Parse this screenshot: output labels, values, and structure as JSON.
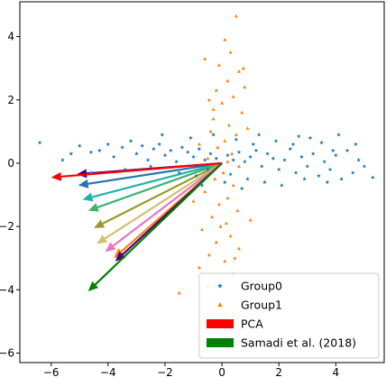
{
  "chart_data": {
    "type": "scatter",
    "title": "",
    "xlabel": "",
    "ylabel": "",
    "xlim": [
      -7.1,
      5.7
    ],
    "ylim": [
      -6.3,
      5.1
    ],
    "x_ticks": [
      -6,
      -4,
      -2,
      0,
      2,
      4
    ],
    "y_ticks": [
      -6,
      -4,
      -2,
      0,
      2,
      4
    ],
    "x_tick_labels": [
      "−6",
      "−4",
      "−2",
      "0",
      "2",
      "4"
    ],
    "y_tick_labels": [
      "−6",
      "−4",
      "−2",
      "0",
      "2",
      "4"
    ],
    "grid": false,
    "legend_position": "lower-right",
    "series": [
      {
        "name": "Group0",
        "kind": "scatter",
        "marker": "star",
        "color": "#1f77b4",
        "points": [
          [
            -6.4,
            0.65
          ],
          [
            -5.3,
            0.3
          ],
          [
            -5.0,
            0.55
          ],
          [
            -4.6,
            0.35
          ],
          [
            -4.3,
            0.4
          ],
          [
            -4.0,
            0.6
          ],
          [
            -3.8,
            0.2
          ],
          [
            -3.5,
            0.5
          ],
          [
            -3.2,
            0.7
          ],
          [
            -3.0,
            0.3
          ],
          [
            -2.8,
            0.55
          ],
          [
            -2.6,
            0.1
          ],
          [
            -2.4,
            0.45
          ],
          [
            -2.2,
            0.6
          ],
          [
            -2.0,
            0.25
          ],
          [
            -1.8,
            0.4
          ],
          [
            -1.6,
            0.05
          ],
          [
            -1.4,
            0.5
          ],
          [
            -1.2,
            0.35
          ],
          [
            -1.0,
            0.2
          ],
          [
            -0.8,
            0.45
          ],
          [
            -0.6,
            0.1
          ],
          [
            -0.4,
            0.3
          ],
          [
            -0.2,
            0.15
          ],
          [
            0.2,
            0.25
          ],
          [
            0.4,
            0.1
          ],
          [
            0.6,
            0.35
          ],
          [
            0.8,
            0.05
          ],
          [
            1.0,
            0.2
          ],
          [
            1.2,
            0.4
          ],
          [
            1.4,
            -0.1
          ],
          [
            1.6,
            0.3
          ],
          [
            1.8,
            0.15
          ],
          [
            2.0,
            -0.2
          ],
          [
            2.2,
            0.1
          ],
          [
            2.4,
            0.45
          ],
          [
            2.6,
            -0.3
          ],
          [
            2.8,
            0.2
          ],
          [
            3.0,
            -0.1
          ],
          [
            3.2,
            0.3
          ],
          [
            3.4,
            -0.4
          ],
          [
            3.6,
            0.05
          ],
          [
            3.8,
            -0.2
          ],
          [
            4.0,
            0.25
          ],
          [
            4.2,
            -0.5
          ],
          [
            4.4,
            0.4
          ],
          [
            4.6,
            -0.3
          ],
          [
            4.8,
            0.1
          ],
          [
            5.0,
            -0.1
          ],
          [
            5.3,
            -0.45
          ],
          [
            -2.5,
            -0.1
          ],
          [
            -3.4,
            -0.2
          ],
          [
            -1.5,
            -0.3
          ],
          [
            -0.9,
            -0.4
          ],
          [
            -0.5,
            -0.2
          ],
          [
            0.3,
            -0.35
          ],
          [
            0.9,
            -0.5
          ],
          [
            1.5,
            -0.6
          ],
          [
            2.1,
            -0.7
          ],
          [
            2.9,
            -0.5
          ],
          [
            3.7,
            -0.6
          ],
          [
            -1.1,
            0.8
          ],
          [
            -0.3,
            0.9
          ],
          [
            0.5,
            0.75
          ],
          [
            1.1,
            0.6
          ],
          [
            1.9,
            0.7
          ],
          [
            2.7,
            0.85
          ],
          [
            3.5,
            0.65
          ],
          [
            4.1,
            0.9
          ],
          [
            -4.6,
            -0.3
          ],
          [
            -5.6,
            0.1
          ],
          [
            -2.1,
            0.9
          ],
          [
            0.1,
            -0.6
          ],
          [
            0.7,
            -0.8
          ],
          [
            1.3,
            0.9
          ],
          [
            2.5,
            0.6
          ],
          [
            3.1,
            0.8
          ],
          [
            3.9,
            0.4
          ],
          [
            4.7,
            0.6
          ],
          [
            -0.7,
            -0.7
          ]
        ]
      },
      {
        "name": "Group1",
        "kind": "scatter",
        "marker": "triangle",
        "color": "#ff7f0e",
        "points": [
          [
            0.5,
            4.65
          ],
          [
            0.1,
            3.9
          ],
          [
            0.3,
            3.5
          ],
          [
            -0.1,
            3.1
          ],
          [
            0.6,
            2.9
          ],
          [
            0.2,
            2.6
          ],
          [
            -0.2,
            2.3
          ],
          [
            0.4,
            2.1
          ],
          [
            0.0,
            1.9
          ],
          [
            0.7,
            1.6
          ],
          [
            -0.3,
            1.4
          ],
          [
            0.25,
            1.2
          ],
          [
            -0.4,
            1.0
          ],
          [
            0.5,
            0.9
          ],
          [
            0.1,
            0.7
          ],
          [
            -0.15,
            0.5
          ],
          [
            0.35,
            0.3
          ],
          [
            -0.5,
            0.15
          ],
          [
            0.6,
            -0.1
          ],
          [
            0.05,
            -0.3
          ],
          [
            -0.25,
            -0.5
          ],
          [
            0.4,
            -0.7
          ],
          [
            -0.6,
            -0.9
          ],
          [
            0.2,
            -1.1
          ],
          [
            -0.1,
            -1.3
          ],
          [
            0.55,
            -1.5
          ],
          [
            -0.35,
            -1.7
          ],
          [
            0.15,
            -1.9
          ],
          [
            -0.7,
            -2.1
          ],
          [
            0.3,
            -2.3
          ],
          [
            -0.2,
            -2.5
          ],
          [
            0.6,
            -2.7
          ],
          [
            -0.45,
            -2.9
          ],
          [
            0.1,
            -3.1
          ],
          [
            -0.8,
            -3.3
          ],
          [
            0.4,
            -3.5
          ],
          [
            -1.5,
            -4.1
          ],
          [
            -0.5,
            -3.9
          ],
          [
            0.8,
            2.4
          ],
          [
            -0.6,
            3.3
          ],
          [
            0.9,
            1.1
          ],
          [
            -0.8,
            0.6
          ],
          [
            1.0,
            -1.8
          ],
          [
            -1.0,
            -1.2
          ],
          [
            0.75,
            3.0
          ],
          [
            -0.45,
            2.0
          ],
          [
            0.2,
            0.05
          ],
          [
            -0.05,
            -2.0
          ],
          [
            0.45,
            -3.0
          ],
          [
            -0.3,
            1.7
          ]
        ]
      },
      {
        "name": "PCA",
        "kind": "arrow",
        "color": "#ff0000",
        "from": [
          0,
          0
        ],
        "to": [
          -6.0,
          -0.45
        ]
      },
      {
        "name": "Samadi et al. (2018)",
        "kind": "arrow",
        "color": "#008000",
        "from": [
          0,
          0
        ],
        "to": [
          -4.7,
          -4.05
        ]
      }
    ],
    "extra_arrows": [
      {
        "color": "#4b0082",
        "to": [
          -5.1,
          -0.35
        ]
      },
      {
        "color": "#1f77b4",
        "to": [
          -5.05,
          -0.7
        ]
      },
      {
        "color": "#20b2aa",
        "to": [
          -4.9,
          -1.15
        ]
      },
      {
        "color": "#3cb371",
        "to": [
          -4.7,
          -1.5
        ]
      },
      {
        "color": "#9a9a2a",
        "to": [
          -4.5,
          -2.05
        ]
      },
      {
        "color": "#d2c070",
        "to": [
          -4.4,
          -2.55
        ]
      },
      {
        "color": "#e377c2",
        "to": [
          -4.1,
          -2.8
        ]
      },
      {
        "color": "#ff7f0e",
        "to": [
          -3.8,
          -3.0
        ]
      },
      {
        "color": "#4b0082",
        "to": [
          -3.75,
          -3.1
        ]
      }
    ]
  }
}
